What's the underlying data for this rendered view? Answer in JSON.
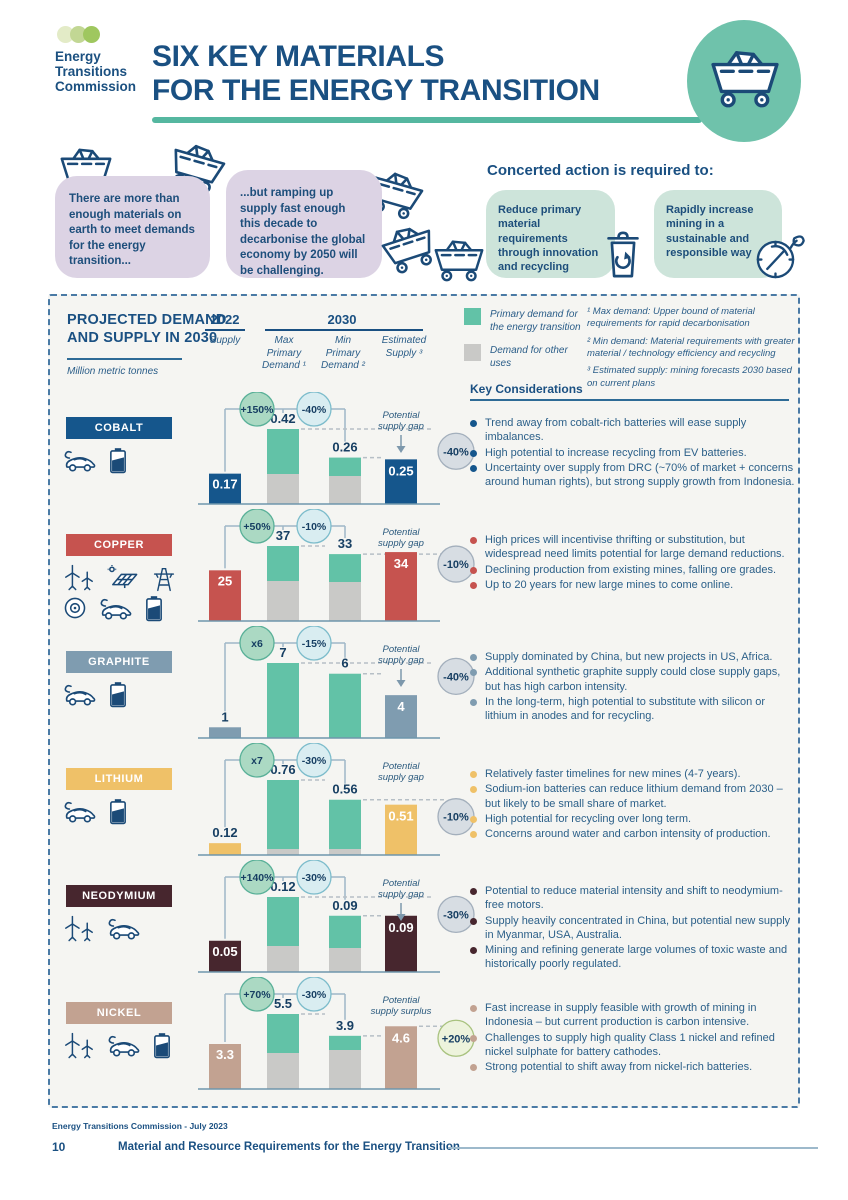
{
  "palette": {
    "teal_bar": "#62c2a7",
    "gray_bar": "#c9c9c7",
    "navy_text": "#173f63",
    "growth_bubble_fill": "#abd9c3",
    "growth_bubble_stroke": "#59b098",
    "reduction_bubble_fill": "#d9edf1",
    "reduction_bubble_stroke": "#7cbccb",
    "gap_badge_fill": "#d7dde3",
    "gap_badge_stroke": "#a3afbc",
    "surplus_badge_fill": "#edf3dc",
    "surplus_badge_stroke": "#a8c27e",
    "connector": "#9fb7c7",
    "dashed": "#b6bfc6",
    "baseline": "#6f96ac",
    "accent_teal": "#55b7a0",
    "logo_dot_colors": [
      "#e3ebc7",
      "#c2d794",
      "#9fc75f"
    ]
  },
  "header": {
    "org_name": "Energy\nTransitions\nCommission",
    "title_line1": "SIX KEY MATERIALS",
    "title_line2": "FOR THE ENERGY TRANSITION"
  },
  "callouts": {
    "intro_box1": "There are more than enough materials on earth to meet demands for the energy transition...",
    "intro_box2": "...but ramping up supply fast enough this decade to decarbonise the global economy by 2050 will be challenging.",
    "concerted_heading": "Concerted action is required to:",
    "action_box1": "Reduce primary material requirements through innovation and recycling",
    "action_box2": "Rapidly increase mining in a sustainable and responsible way"
  },
  "panel": {
    "heading": "PROJECTED DEMAND AND SUPPLY IN 2030",
    "unit": "Million metric tonnes",
    "col_2022": "2022",
    "col_2022_sub": "Supply",
    "col_2030": "2030",
    "col_max": "Max\nPrimary\nDemand ¹",
    "col_min": "Min\nPrimary\nDemand ²",
    "col_est": "Estimated\nSupply ³",
    "legend": [
      {
        "label": "Primary demand for the energy transition",
        "color": "#62c2a7"
      },
      {
        "label": "Demand for other uses",
        "color": "#c9c9c7"
      }
    ],
    "footnotes": [
      "¹ Max demand: Upper bound of material requirements for rapid decarbonisation",
      "² Min demand: Material requirements with greater material / technology efficiency and recycling",
      "³ Estimated supply: mining forecasts 2030 based on current plans"
    ],
    "key_considerations": "Key Considerations"
  },
  "materials": [
    {
      "name": "COBALT",
      "color": "#15568c",
      "icons": [
        "ev-car-icon",
        "battery-icon"
      ],
      "bars": {
        "supply_2022": {
          "value": 0.17,
          "label": "0.17",
          "label_inside": true
        },
        "max_demand_2030": {
          "value": 0.42,
          "label": "0.42",
          "other_uses_fraction": 0.4
        },
        "min_demand_2030": {
          "value": 0.26,
          "label": "0.26",
          "other_uses_fraction": 0.6
        },
        "estimated_supply_2030": {
          "value": 0.25,
          "label": "0.25"
        }
      },
      "growth_bubble": "+150%",
      "reduction_bubble": "-40%",
      "gap": {
        "line1": "Potential",
        "line2": "supply gap",
        "badge": "-40%",
        "style": "arrow"
      },
      "bullets": [
        "Trend away from cobalt-rich batteries will ease supply imbalances.",
        "High potential to increase recycling from EV batteries.",
        "Uncertainty over supply from DRC (~70% of market + concerns around human rights), but strong supply growth from Indonesia."
      ]
    },
    {
      "name": "COPPER",
      "color": "#c6534f",
      "icons": [
        "wind-turbine-icon",
        "solar-panel-icon",
        "transmission-tower-icon",
        "motor-icon",
        "ev-car-icon",
        "battery-icon"
      ],
      "bars": {
        "supply_2022": {
          "value": 25,
          "label": "25",
          "label_inside": true
        },
        "max_demand_2030": {
          "value": 37,
          "label": "37",
          "other_uses_fraction": 0.53
        },
        "min_demand_2030": {
          "value": 33,
          "label": "33",
          "other_uses_fraction": 0.59
        },
        "estimated_supply_2030": {
          "value": 34,
          "label": "34"
        }
      },
      "growth_bubble": "+50%",
      "reduction_bubble": "-10%",
      "gap": {
        "line1": "Potential",
        "line2": "supply gap",
        "badge": "-10%",
        "style": "line"
      },
      "bullets": [
        "High prices will incentivise thrifting or substitution, but widespread need limits potential for large demand reductions.",
        "Declining production from existing mines, falling ore grades.",
        "Up to 20 years for new large mines to come online."
      ]
    },
    {
      "name": "GRAPHITE",
      "color": "#7f9cb0",
      "icons": [
        "ev-car-icon",
        "battery-icon"
      ],
      "bars": {
        "supply_2022": {
          "value": 1,
          "label": "1",
          "label_inside": false
        },
        "max_demand_2030": {
          "value": 7,
          "label": "7",
          "other_uses_fraction": 0
        },
        "min_demand_2030": {
          "value": 6,
          "label": "6",
          "other_uses_fraction": 0
        },
        "estimated_supply_2030": {
          "value": 4,
          "label": "4"
        }
      },
      "growth_bubble": "x6",
      "reduction_bubble": "-15%",
      "gap": {
        "line1": "Potential",
        "line2": "supply gap",
        "badge": "-40%",
        "style": "arrow"
      },
      "bullets": [
        "Supply dominated by China, but new projects in US, Africa.",
        "Additional synthetic graphite supply could close supply gaps, but has high carbon intensity.",
        "In the long-term, high potential to substitute with silicon or lithium in anodes and for recycling."
      ]
    },
    {
      "name": "LITHIUM",
      "color": "#efc168",
      "icons": [
        "ev-car-icon",
        "battery-icon"
      ],
      "bars": {
        "supply_2022": {
          "value": 0.12,
          "label": "0.12",
          "label_inside": false
        },
        "max_demand_2030": {
          "value": 0.76,
          "label": "0.76",
          "other_uses_fraction": 0.08
        },
        "min_demand_2030": {
          "value": 0.56,
          "label": "0.56",
          "other_uses_fraction": 0.11
        },
        "estimated_supply_2030": {
          "value": 0.51,
          "label": "0.51"
        }
      },
      "growth_bubble": "x7",
      "reduction_bubble": "-30%",
      "gap": {
        "line1": "Potential",
        "line2": "supply gap",
        "badge": "-10%",
        "style": "line"
      },
      "bullets": [
        "Relatively faster timelines for new mines (4-7 years).",
        "Sodium-ion batteries can reduce lithium demand from 2030 – but likely to be small share of market.",
        "High potential for recycling over long term.",
        "Concerns around water and carbon intensity of production."
      ]
    },
    {
      "name": "NEODYMIUM",
      "color": "#47262e",
      "icons": [
        "wind-turbine-icon",
        "ev-car-icon"
      ],
      "bars": {
        "supply_2022": {
          "value": 0.05,
          "label": "0.05",
          "label_inside": true
        },
        "max_demand_2030": {
          "value": 0.12,
          "label": "0.12",
          "other_uses_fraction": 0.35
        },
        "min_demand_2030": {
          "value": 0.09,
          "label": "0.09",
          "other_uses_fraction": 0.42
        },
        "estimated_supply_2030": {
          "value": 0.09,
          "label": "0.09"
        }
      },
      "growth_bubble": "+140%",
      "reduction_bubble": "-30%",
      "gap": {
        "line1": "Potential",
        "line2": "supply gap",
        "badge": "-30%",
        "style": "arrow"
      },
      "bullets": [
        "Potential to reduce material intensity and shift to neodymium-free motors.",
        "Supply heavily concentrated in China, but potential new supply in Myanmar, USA, Australia.",
        "Mining and refining generate large volumes of toxic waste and historically poorly regulated."
      ]
    },
    {
      "name": "NICKEL",
      "color": "#c2a291",
      "icons": [
        "wind-turbine-icon",
        "ev-car-icon",
        "battery-icon"
      ],
      "bars": {
        "supply_2022": {
          "value": 3.3,
          "label": "3.3",
          "label_inside": true
        },
        "max_demand_2030": {
          "value": 5.5,
          "label": "5.5",
          "other_uses_fraction": 0.48
        },
        "min_demand_2030": {
          "value": 3.9,
          "label": "3.9",
          "other_uses_fraction": 0.73
        },
        "estimated_supply_2030": {
          "value": 4.6,
          "label": "4.6"
        }
      },
      "growth_bubble": "+70%",
      "reduction_bubble": "-30%",
      "gap": {
        "line1": "Potential",
        "line2": "supply surplus",
        "badge": "+20%",
        "style": "surplus"
      },
      "bullets": [
        "Fast increase in supply feasible with growth of mining in Indonesia – but current production is carbon intensive.",
        "Challenges to supply high quality Class 1 nickel and refined nickel sulphate for battery cathodes.",
        "Strong potential to shift away from nickel-rich batteries."
      ]
    }
  ],
  "chart_data": [
    {
      "type": "bar",
      "title": "COBALT",
      "unit": "Million metric tonnes",
      "categories": [
        "2022 Supply",
        "2030 Max Primary Demand",
        "2030 Min Primary Demand",
        "2030 Estimated Supply"
      ],
      "values": [
        0.17,
        0.42,
        0.26,
        0.25
      ],
      "annotations": {
        "growth_vs_2022": "+150%",
        "min_vs_max": "-40%",
        "potential_supply_gap": "-40%"
      }
    },
    {
      "type": "bar",
      "title": "COPPER",
      "unit": "Million metric tonnes",
      "categories": [
        "2022 Supply",
        "2030 Max Primary Demand",
        "2030 Min Primary Demand",
        "2030 Estimated Supply"
      ],
      "values": [
        25,
        37,
        33,
        34
      ],
      "annotations": {
        "growth_vs_2022": "+50%",
        "min_vs_max": "-10%",
        "potential_supply_gap": "-10%"
      }
    },
    {
      "type": "bar",
      "title": "GRAPHITE",
      "unit": "Million metric tonnes",
      "categories": [
        "2022 Supply",
        "2030 Max Primary Demand",
        "2030 Min Primary Demand",
        "2030 Estimated Supply"
      ],
      "values": [
        1,
        7,
        6,
        4
      ],
      "annotations": {
        "growth_vs_2022": "x6",
        "min_vs_max": "-15%",
        "potential_supply_gap": "-40%"
      }
    },
    {
      "type": "bar",
      "title": "LITHIUM",
      "unit": "Million metric tonnes",
      "categories": [
        "2022 Supply",
        "2030 Max Primary Demand",
        "2030 Min Primary Demand",
        "2030 Estimated Supply"
      ],
      "values": [
        0.12,
        0.76,
        0.56,
        0.51
      ],
      "annotations": {
        "growth_vs_2022": "x7",
        "min_vs_max": "-30%",
        "potential_supply_gap": "-10%"
      }
    },
    {
      "type": "bar",
      "title": "NEODYMIUM",
      "unit": "Million metric tonnes",
      "categories": [
        "2022 Supply",
        "2030 Max Primary Demand",
        "2030 Min Primary Demand",
        "2030 Estimated Supply"
      ],
      "values": [
        0.05,
        0.12,
        0.09,
        0.09
      ],
      "annotations": {
        "growth_vs_2022": "+140%",
        "min_vs_max": "-30%",
        "potential_supply_gap": "-30%"
      }
    },
    {
      "type": "bar",
      "title": "NICKEL",
      "unit": "Million metric tonnes",
      "categories": [
        "2022 Supply",
        "2030 Max Primary Demand",
        "2030 Min Primary Demand",
        "2030 Estimated Supply"
      ],
      "values": [
        3.3,
        5.5,
        3.9,
        4.6
      ],
      "annotations": {
        "growth_vs_2022": "+70%",
        "min_vs_max": "-30%",
        "potential_supply_surplus": "+20%"
      }
    }
  ],
  "footer": {
    "credit": "Energy Transitions Commission - July 2023",
    "page_number": "10",
    "doc_title": "Material and Resource Requirements for the Energy Transition"
  }
}
